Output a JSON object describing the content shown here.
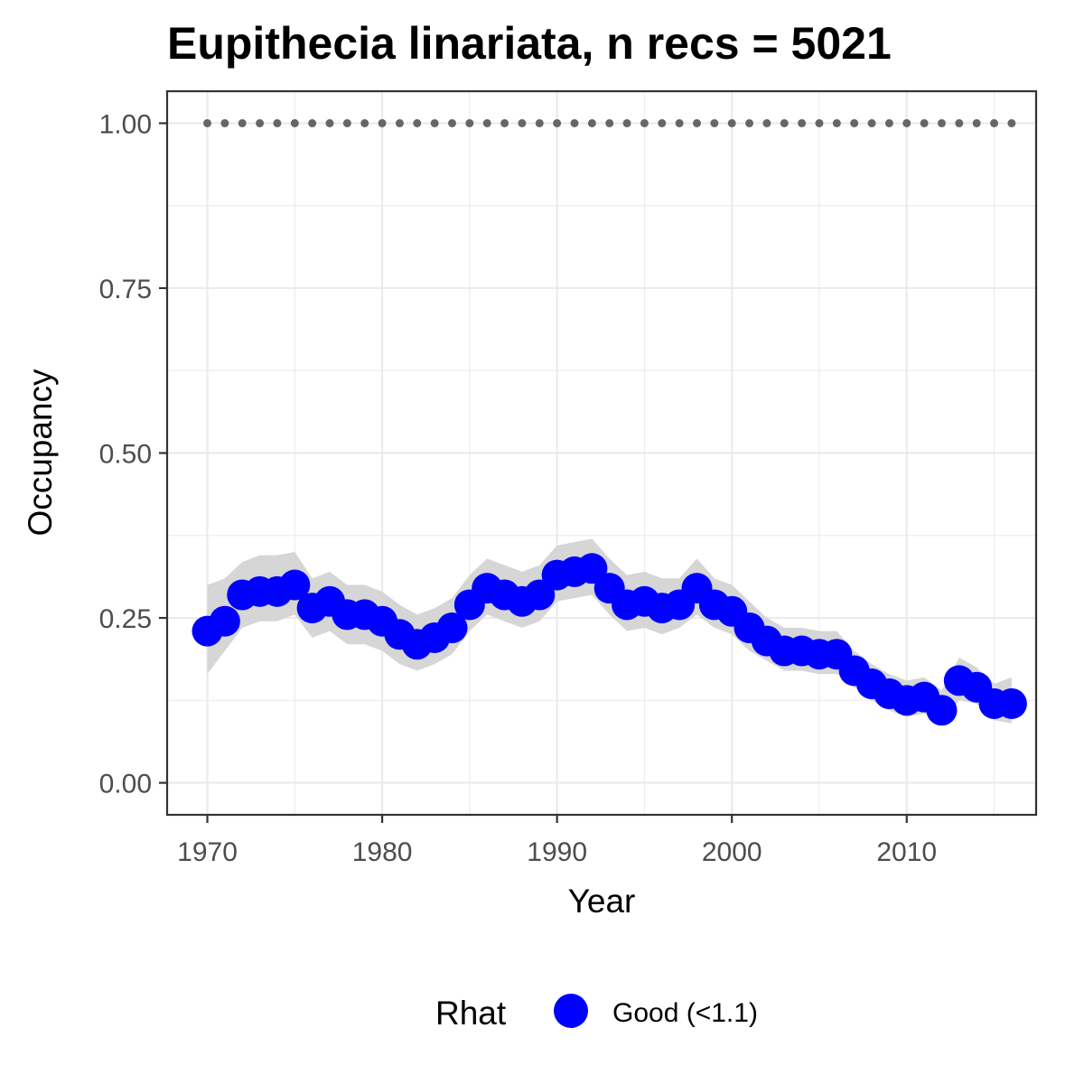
{
  "chart_data": {
    "type": "line",
    "title": "Eupithecia linariata, n recs = 5021",
    "xlabel": "Year",
    "ylabel": "Occupancy",
    "xlim": [
      1967.7,
      2017.4
    ],
    "ylim": [
      -0.0485,
      1.0485
    ],
    "x_ticks": [
      1970,
      1980,
      1990,
      2000,
      2010
    ],
    "x_tick_labels": [
      "1970",
      "1980",
      "1990",
      "2000",
      "2010"
    ],
    "y_ticks": [
      0,
      0.25,
      0.5,
      0.75,
      1.0
    ],
    "y_tick_labels": [
      "0.00",
      "0.25",
      "0.50",
      "0.75",
      "1.00"
    ],
    "grid": true,
    "legend": {
      "title": "Rhat",
      "position": "bottom",
      "entries": [
        {
          "label": "Good (<1.1)",
          "color": "#0000ff"
        }
      ]
    },
    "colors": {
      "point": "#0000ff",
      "ribbon": "#d6d6d6",
      "reference": "#666666",
      "grid": "#ebebeb",
      "panel_border": "#333333"
    },
    "reference_line": {
      "y": 1.0,
      "style": "dotted",
      "x": [
        1970,
        2016
      ]
    },
    "series": [
      {
        "name": "Good (<1.1)",
        "x": [
          1970,
          1971,
          1972,
          1973,
          1974,
          1975,
          1976,
          1977,
          1978,
          1979,
          1980,
          1981,
          1982,
          1983,
          1984,
          1985,
          1986,
          1987,
          1988,
          1989,
          1990,
          1991,
          1992,
          1993,
          1994,
          1995,
          1996,
          1997,
          1998,
          1999,
          2000,
          2001,
          2002,
          2003,
          2004,
          2005,
          2006,
          2007,
          2008,
          2009,
          2010,
          2011,
          2012,
          2013,
          2014,
          2015,
          2016
        ],
        "y": [
          0.23,
          0.245,
          0.285,
          0.29,
          0.29,
          0.3,
          0.265,
          0.275,
          0.255,
          0.255,
          0.245,
          0.225,
          0.21,
          0.22,
          0.235,
          0.27,
          0.295,
          0.285,
          0.275,
          0.285,
          0.315,
          0.32,
          0.325,
          0.295,
          0.27,
          0.275,
          0.265,
          0.27,
          0.295,
          0.27,
          0.26,
          0.235,
          0.215,
          0.2,
          0.2,
          0.195,
          0.195,
          0.17,
          0.15,
          0.135,
          0.125,
          0.13,
          0.11,
          0.155,
          0.145,
          0.12,
          0.12
        ],
        "lower": [
          0.165,
          0.2,
          0.235,
          0.245,
          0.245,
          0.255,
          0.22,
          0.23,
          0.21,
          0.21,
          0.2,
          0.18,
          0.17,
          0.18,
          0.195,
          0.23,
          0.255,
          0.245,
          0.235,
          0.245,
          0.275,
          0.28,
          0.285,
          0.255,
          0.23,
          0.235,
          0.225,
          0.235,
          0.255,
          0.235,
          0.225,
          0.2,
          0.185,
          0.17,
          0.17,
          0.165,
          0.165,
          0.145,
          0.125,
          0.11,
          0.1,
          0.105,
          0.09,
          0.125,
          0.12,
          0.095,
          0.09
        ],
        "upper": [
          0.3,
          0.31,
          0.335,
          0.345,
          0.345,
          0.35,
          0.31,
          0.32,
          0.3,
          0.3,
          0.29,
          0.27,
          0.255,
          0.265,
          0.28,
          0.315,
          0.34,
          0.33,
          0.32,
          0.33,
          0.36,
          0.365,
          0.37,
          0.34,
          0.315,
          0.32,
          0.31,
          0.31,
          0.34,
          0.31,
          0.3,
          0.275,
          0.25,
          0.235,
          0.235,
          0.23,
          0.23,
          0.2,
          0.18,
          0.165,
          0.155,
          0.16,
          0.14,
          0.19,
          0.175,
          0.15,
          0.16
        ]
      }
    ]
  }
}
